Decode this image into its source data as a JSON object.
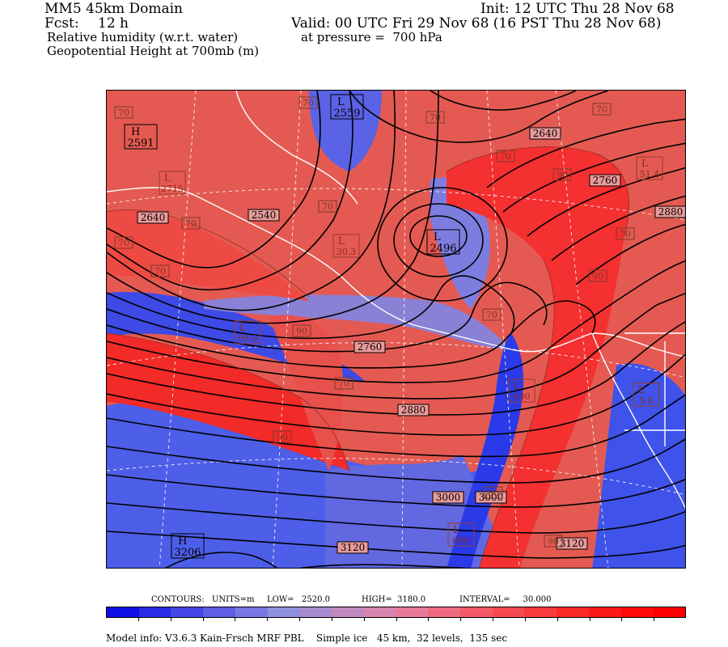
{
  "header": {
    "domain": "MM5 45km Domain",
    "init": "Init: 12 UTC Thu 28 Nov 68",
    "fcst_label": "Fcst:",
    "fcst_value": "12 h",
    "valid": "Valid: 00 UTC Fri 29 Nov 68 (16 PST Thu 28 Nov 68)",
    "field1": "Relative humidity (w.r.t. water)",
    "pressure": "at pressure =  700 hPa",
    "field2": "Geopotential Height at 700mb (m)"
  },
  "map": {
    "height_labels": [
      {
        "text": "2640"
      },
      {
        "text": "2540"
      },
      {
        "text": "2640"
      },
      {
        "text": "2760"
      },
      {
        "text": "2760"
      },
      {
        "text": "2880"
      },
      {
        "text": "2880"
      },
      {
        "text": "3000"
      },
      {
        "text": "3000"
      },
      {
        "text": "3120"
      },
      {
        "text": "3120"
      }
    ],
    "rh_labels": [
      {
        "text": "70"
      },
      {
        "text": "70"
      },
      {
        "text": "70"
      },
      {
        "text": "70"
      },
      {
        "text": "70"
      },
      {
        "text": "70"
      },
      {
        "text": "70"
      },
      {
        "text": "70"
      },
      {
        "text": "70"
      },
      {
        "text": "70"
      },
      {
        "text": "70"
      },
      {
        "text": "70"
      },
      {
        "text": "90"
      },
      {
        "text": "90"
      },
      {
        "text": "90"
      },
      {
        "text": "90"
      },
      {
        "text": "90"
      },
      {
        "text": "90"
      }
    ],
    "centers": [
      {
        "type": "H",
        "value": "2591"
      },
      {
        "type": "L",
        "value": "2559"
      },
      {
        "type": "L",
        "value": "2496"
      },
      {
        "type": "H",
        "value": "3206"
      }
    ],
    "faint_centers": [
      {
        "type": "L",
        "value": "2715"
      },
      {
        "type": "L",
        "value": "30.3"
      },
      {
        "type": "L",
        "value": "99.0"
      },
      {
        "type": "L",
        "value": "51.4"
      },
      {
        "type": "L",
        "value": "000"
      },
      {
        "type": "L",
        "value": "5.6"
      },
      {
        "type": "L",
        "value": "000"
      }
    ]
  },
  "contour_info": {
    "label": "CONTOURS:",
    "units": "UNITS=m",
    "low": "LOW=   2520.0",
    "high": "HIGH=  3180.0",
    "interval": "INTERVAL=     30.000"
  },
  "colorbar_colors": [
    "#1010e6",
    "#2a2ae6",
    "#4646e6",
    "#5f5fe6",
    "#7878e6",
    "#9090e0",
    "#a88ad0",
    "#c08abf",
    "#d685ae",
    "#e67a98",
    "#ee6a80",
    "#f25a68",
    "#f64a52",
    "#f83a3c",
    "#fa2a28",
    "#fc1a16",
    "#fe0a08",
    "#ff0000"
  ],
  "model_info": "Model info: V3.6.3 Kain-Frsch MRF PBL    Simple ice   45 km,  32 levels,  135 sec"
}
